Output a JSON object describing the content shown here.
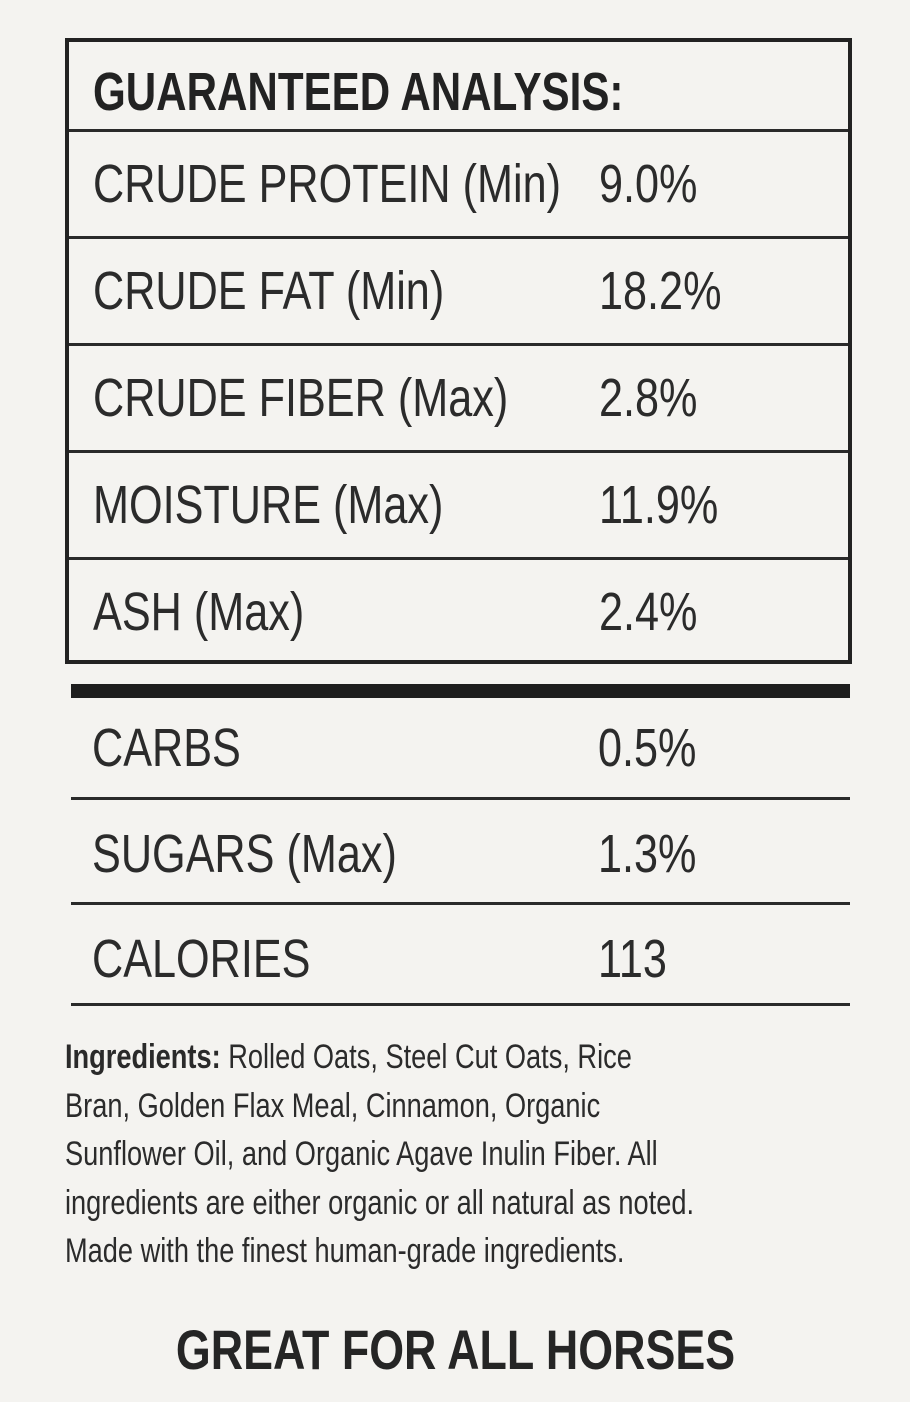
{
  "analysis": {
    "title": "GUARANTEED ANALYSIS:",
    "rows": [
      {
        "label": "CRUDE PROTEIN (Min)",
        "value": "9.0%"
      },
      {
        "label": "CRUDE FAT (Min)",
        "value": "18.2%"
      },
      {
        "label": "CRUDE FIBER (Max)",
        "value": "2.8%"
      },
      {
        "label": "MOISTURE (Max)",
        "value": "11.9%"
      },
      {
        "label": "ASH (Max)",
        "value": "2.4%"
      }
    ]
  },
  "extra": [
    {
      "label": "CARBS",
      "value": "0.5%"
    },
    {
      "label": "SUGARS (Max)",
      "value": "1.3%"
    },
    {
      "label": "CALORIES",
      "value": "113"
    }
  ],
  "ingredients": {
    "heading": "Ingredients:",
    "lines": [
      " Rolled Oats, Steel Cut Oats, Rice",
      "Bran, Golden Flax Meal, Cinnamon, Organic",
      "Sunflower Oil, and Organic Agave Inulin Fiber. All",
      "ingredients are either organic or all natural as noted.",
      "Made with the finest human-grade ingredients."
    ]
  },
  "footer": "GREAT FOR ALL HORSES"
}
